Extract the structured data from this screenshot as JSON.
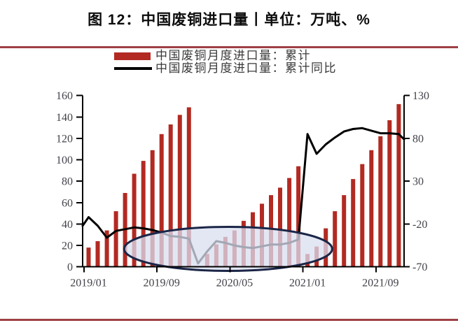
{
  "title": "图 12：中国废铜进口量丨单位：万吨、%",
  "chart_data": {
    "type": "bar+line",
    "title": "图 12：中国废铜进口量丨单位：万吨、%",
    "units": {
      "left": "万吨",
      "right": "%"
    },
    "months": [
      "2019/01",
      "2019/02",
      "2019/03",
      "2019/04",
      "2019/05",
      "2019/06",
      "2019/07",
      "2019/08",
      "2019/09",
      "2019/10",
      "2019/11",
      "2019/12",
      "2020/01",
      "2020/02",
      "2020/03",
      "2020/04",
      "2020/05",
      "2020/06",
      "2020/07",
      "2020/08",
      "2020/09",
      "2020/10",
      "2020/11",
      "2020/12",
      "2021/01",
      "2021/02",
      "2021/03",
      "2021/04",
      "2021/05",
      "2021/06",
      "2021/07",
      "2021/08",
      "2021/09",
      "2021/10",
      "2021/11",
      "2021/12"
    ],
    "series": [
      {
        "name": "中国废铜月度进口量：累计",
        "type": "bar",
        "axis": "left",
        "color": "#b22a22",
        "values": [
          18,
          24,
          34,
          52,
          69,
          87,
          99,
          109,
          124,
          133,
          142,
          149,
          null,
          12,
          21,
          28,
          34,
          43,
          51,
          59,
          67,
          74,
          83,
          94,
          12,
          19,
          36,
          52,
          67,
          82,
          96,
          109,
          122,
          137,
          152,
          null
        ]
      },
      {
        "name": "中国废铜月度进口量：累计同比",
        "type": "line",
        "axis": "right",
        "color": "#000000",
        "leadin": -22,
        "values": [
          -12,
          -22,
          -36,
          -28,
          -26,
          -24,
          -25,
          -27,
          -30,
          -34,
          -35,
          -37,
          -66,
          -52,
          -40,
          -42,
          -45,
          -47,
          -48,
          -46,
          -44,
          -44,
          -42,
          -38,
          85,
          62,
          73,
          81,
          88,
          91,
          92,
          89,
          86,
          86,
          85,
          79
        ]
      }
    ],
    "left_axis": {
      "min": 0,
      "max": 160,
      "ticks": [
        0,
        20,
        40,
        60,
        80,
        100,
        120,
        140,
        160
      ]
    },
    "right_axis": {
      "min": -70,
      "max": 130,
      "ticks": [
        -70,
        -20,
        30,
        80,
        130
      ]
    },
    "x_ticks": [
      {
        "label": "2019/01",
        "month": 0
      },
      {
        "label": "2019/09",
        "month": 8
      },
      {
        "label": "2020/05",
        "month": 16
      },
      {
        "label": "2021/01",
        "month": 24
      },
      {
        "label": "2021/09",
        "month": 32
      }
    ],
    "annotation_ellipse": {
      "center_month": 15.3,
      "center_left_value": 16.8,
      "rx_months": 11.4,
      "ry_left_value": 20.6,
      "fill": "#d9dff0",
      "fill_opacity": 0.75,
      "stroke": "#1b2647",
      "stroke_width": 3
    },
    "grid": false,
    "legend_position": "top-left"
  }
}
